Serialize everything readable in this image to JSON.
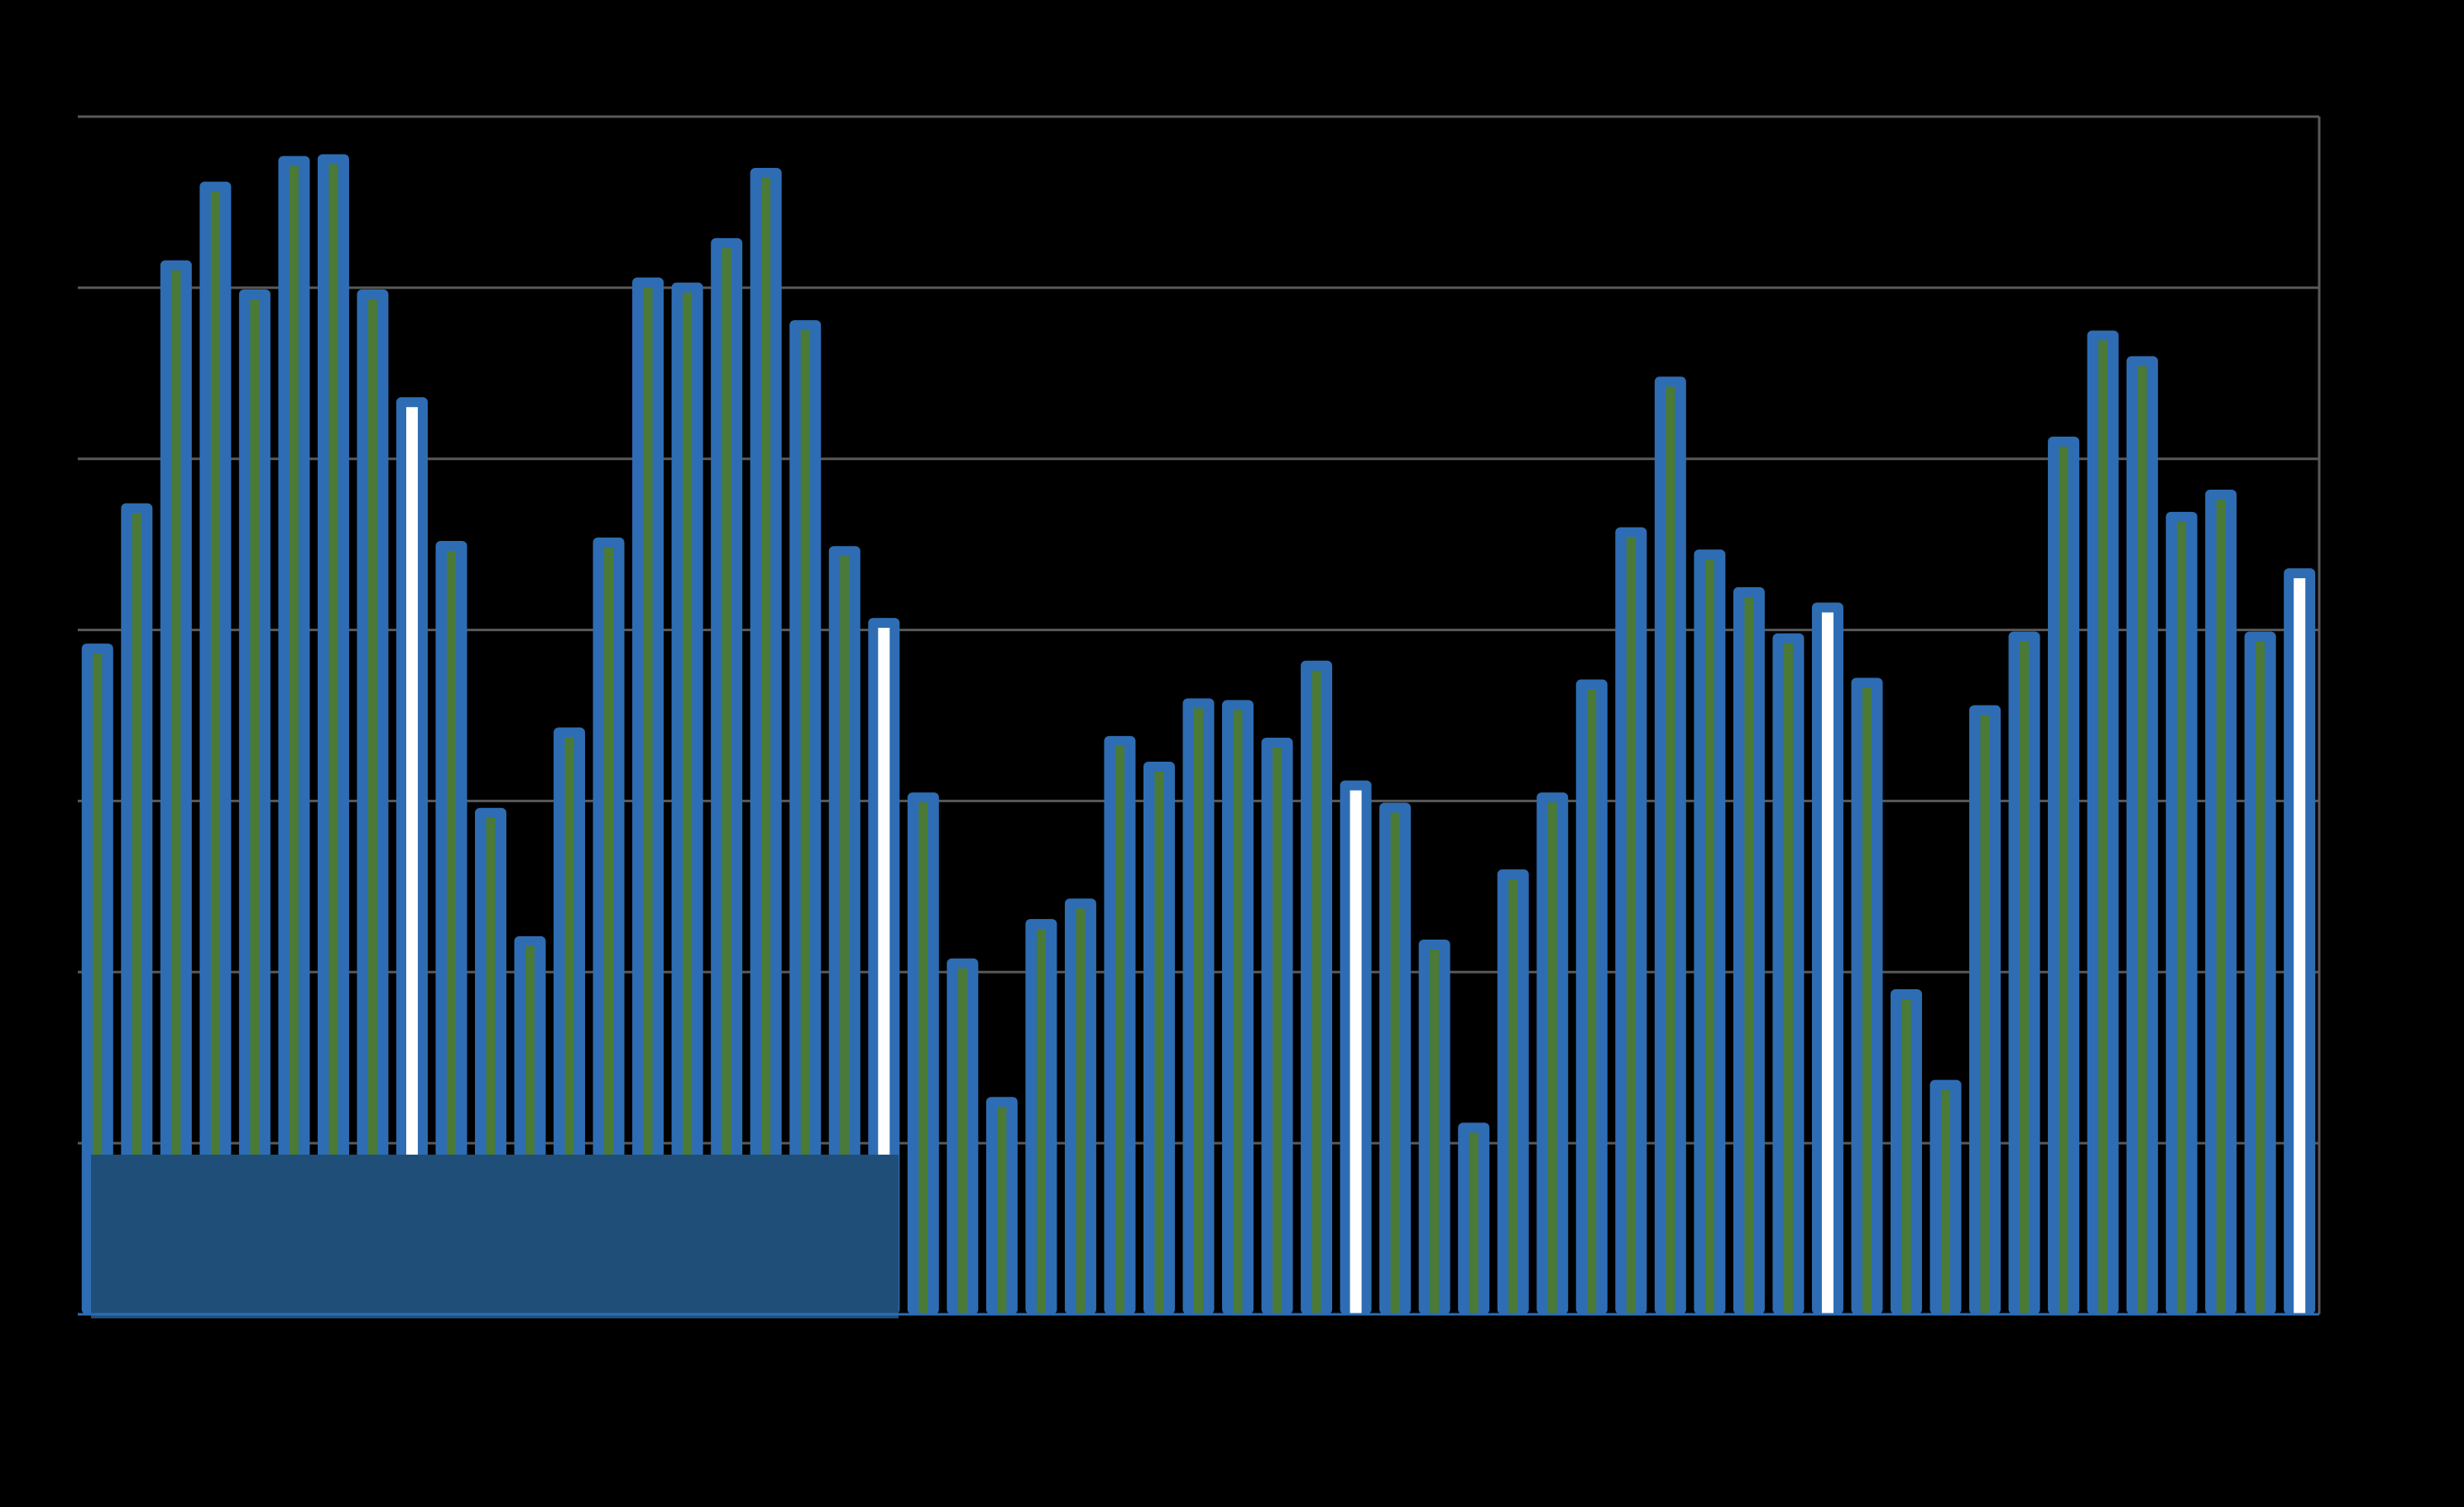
{
  "chart_data": {
    "type": "bar",
    "title": "",
    "xlabel": "",
    "ylabel": "",
    "ylim": [
      0,
      7
    ],
    "grid": true,
    "legend": "none",
    "series": [
      {
        "values": [
          3.92,
          4.74,
          6.16,
          6.62,
          5.99,
          6.77,
          6.78,
          5.99,
          5.36,
          4.52,
          2.96,
          2.21,
          3.43,
          4.54,
          6.06,
          6.03,
          6.29,
          6.7,
          5.81,
          4.49,
          4.07,
          3.05,
          2.08,
          1.27,
          2.31,
          2.43,
          3.38,
          3.23,
          3.6,
          3.59,
          3.37,
          3.82,
          3.12,
          2.99,
          2.19,
          1.12,
          2.6,
          3.05,
          3.71,
          4.6,
          5.48,
          4.47,
          4.25,
          3.98,
          4.16,
          3.72,
          1.9,
          1.37,
          3.56,
          3.99,
          5.13,
          5.75,
          5.6,
          4.69,
          4.82,
          3.99,
          4.36
        ]
      }
    ],
    "highlighted_indices": [
      8,
      20,
      32,
      44,
      56
    ],
    "colors": {
      "background": "#000000",
      "bar_outline": "#2e6db4",
      "bar_fill": "#4a7a36",
      "highlight_fill": "#ffffff",
      "gridline": "#595959",
      "overlay_box": "#1f4e79"
    }
  }
}
